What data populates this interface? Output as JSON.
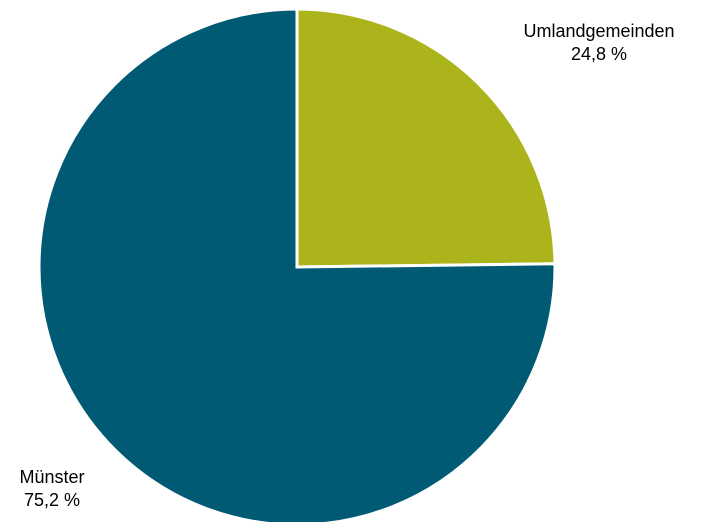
{
  "chart_data": {
    "type": "pie",
    "slices": [
      {
        "label": "Umlandgemeinden",
        "value": 24.8,
        "value_text": "24,8 %",
        "color": "#abb41a"
      },
      {
        "label": "Münster",
        "value": 75.2,
        "value_text": "75,2 %",
        "color": "#005a74"
      }
    ],
    "start_angle": "12 o'clock",
    "direction": "clockwise",
    "slice_separator_color": "#ffffff"
  }
}
